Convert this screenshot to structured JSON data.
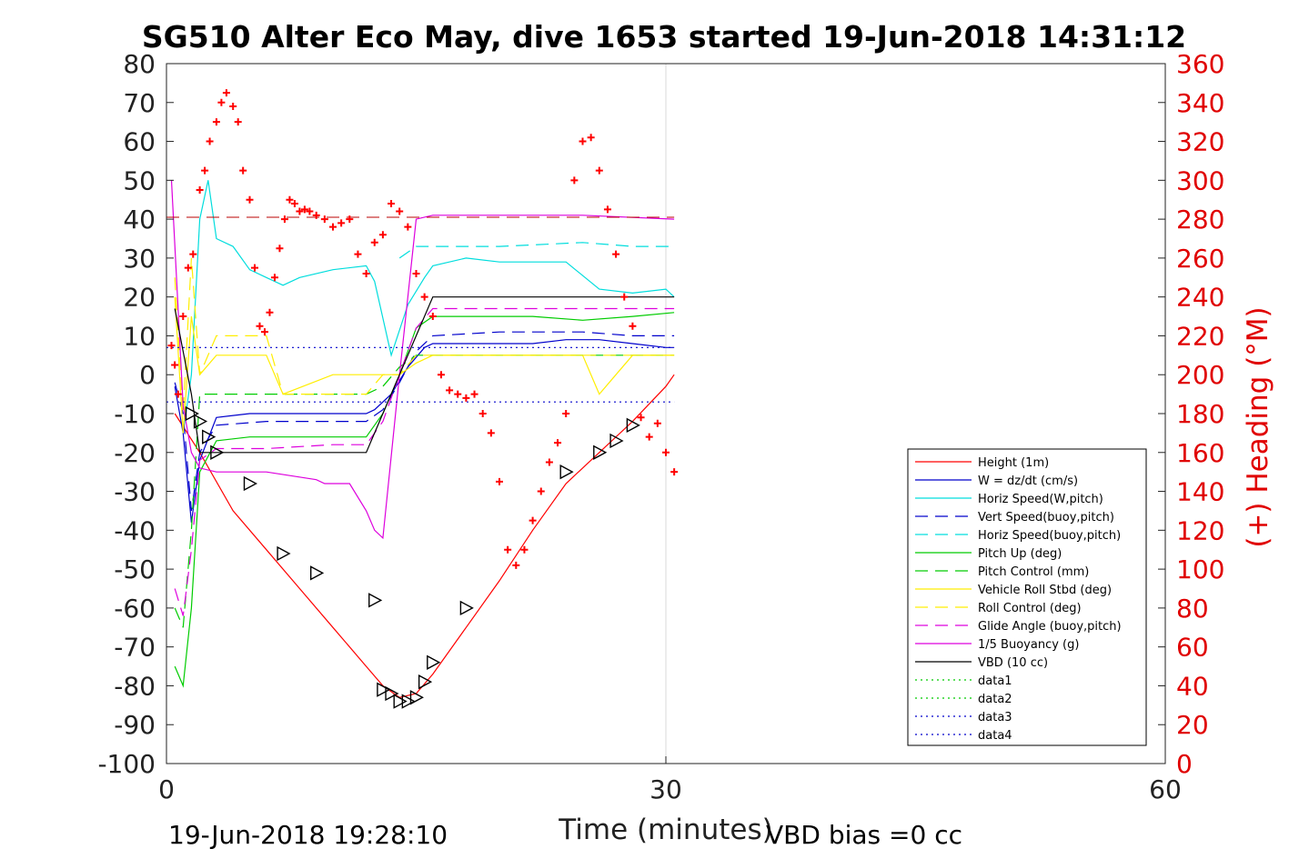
{
  "chart_data": {
    "type": "line",
    "title": "SG510 Alter Eco May, dive 1653 started 19-Jun-2018 14:31:12",
    "xlabel": "Time (minutes)",
    "ylabel": "",
    "y2label": "(+) Heading (°M)",
    "xlim": [
      0,
      60
    ],
    "ylim": [
      -100,
      80
    ],
    "y2lim": [
      0,
      360
    ],
    "xticks": [
      "0",
      "30",
      "60"
    ],
    "yticks": [
      "80",
      "70",
      "60",
      "50",
      "40",
      "30",
      "20",
      "10",
      "0",
      "-10",
      "-20",
      "-30",
      "-40",
      "-50",
      "-60",
      "-70",
      "-80",
      "-90",
      "-100"
    ],
    "y2ticks": [
      "360",
      "340",
      "320",
      "300",
      "280",
      "260",
      "240",
      "220",
      "200",
      "180",
      "160",
      "140",
      "120",
      "100",
      "80",
      "60",
      "40",
      "20",
      "0"
    ],
    "footer_left": "19-Jun-2018 19:28:10",
    "footer_right": "VBD bias =0 cc",
    "grid": "x at 30",
    "legend_position": "lower-right",
    "series": [
      {
        "name": "Height (1m)",
        "color": "#ff0000",
        "style": "solid",
        "x": [
          0.5,
          2,
          4,
          6,
          8,
          10,
          12,
          13,
          14,
          15,
          16,
          18,
          20,
          22,
          24,
          26,
          28,
          30,
          30.5
        ],
        "y": [
          -10,
          -20,
          -35,
          -45,
          -55,
          -65,
          -75,
          -80,
          -83,
          -82,
          -77,
          -65,
          -53,
          -40,
          -28,
          -20,
          -12,
          -3,
          0
        ]
      },
      {
        "name": "W = dz/dt (cm/s)",
        "color": "#0000cc",
        "style": "solid",
        "x": [
          0.5,
          1,
          1.5,
          2,
          3,
          5,
          8,
          10,
          12,
          12.5,
          13.5,
          14.5,
          15.5,
          16,
          18,
          20,
          22,
          24,
          26,
          28,
          30,
          30.5
        ],
        "y": [
          -3,
          -15,
          -38,
          -22,
          -11,
          -10,
          -10,
          -10,
          -10,
          -9,
          -5,
          2,
          7,
          8,
          8,
          8,
          8,
          9,
          9,
          8,
          7,
          7
        ]
      },
      {
        "name": "Horiz Speed(W,pitch)",
        "color": "#00dddd",
        "style": "solid",
        "x": [
          1,
          1.5,
          2,
          2.5,
          3,
          4,
          5,
          6,
          7,
          8,
          10,
          12,
          12.5,
          13.5,
          14.5,
          15.5,
          16,
          18,
          20,
          22,
          24,
          26,
          28,
          30,
          30.5
        ],
        "y": [
          -15,
          0,
          40,
          50,
          35,
          33,
          27,
          25,
          23,
          25,
          27,
          28,
          24,
          5,
          18,
          25,
          28,
          30,
          29,
          29,
          29,
          22,
          21,
          22,
          20
        ]
      },
      {
        "name": "Vert Speed(buoy,pitch)",
        "color": "#0000cc",
        "style": "dashed",
        "x": [
          0.5,
          1,
          1.5,
          2,
          3,
          6,
          10,
          12,
          13,
          14,
          15,
          16,
          20,
          25,
          28,
          30.5
        ],
        "y": [
          -2,
          -10,
          -35,
          -20,
          -13,
          -12,
          -12,
          -12,
          -9,
          -2,
          6,
          10,
          11,
          11,
          10,
          10
        ]
      },
      {
        "name": "Horiz Speed(buoy,pitch)",
        "color": "#00dddd",
        "style": "dashed",
        "x": [
          14,
          15,
          16,
          20,
          25,
          28,
          30.5
        ],
        "y": [
          30,
          33,
          33,
          33,
          34,
          33,
          33
        ]
      },
      {
        "name": "Pitch Up (deg)",
        "color": "#00cc00",
        "style": "solid",
        "x": [
          0.5,
          1,
          1.5,
          2,
          3,
          5,
          8,
          12,
          13,
          14,
          15,
          16,
          18,
          20,
          22,
          25,
          28,
          30.5
        ],
        "y": [
          -75,
          -80,
          -60,
          -25,
          -17,
          -16,
          -16,
          -16,
          -10,
          0,
          12,
          15,
          15,
          15,
          15,
          14,
          15,
          16
        ]
      },
      {
        "name": "Pitch Control (mm)",
        "color": "#00cc00",
        "style": "dashed",
        "x": [
          0.5,
          1,
          1.5,
          2,
          3,
          12,
          13,
          14,
          15,
          30.5
        ],
        "y": [
          -60,
          -65,
          -40,
          -5,
          -5,
          -5,
          -3,
          2,
          5,
          5
        ]
      },
      {
        "name": "Vehicle Roll Stbd (deg)",
        "color": "#ffee00",
        "style": "solid",
        "x": [
          0.5,
          1,
          1.5,
          2,
          3,
          6,
          7,
          10,
          13,
          14,
          15,
          16,
          18,
          20,
          22,
          25,
          26,
          27,
          28,
          30.5
        ],
        "y": [
          20,
          -15,
          15,
          0,
          5,
          5,
          -5,
          0,
          0,
          0,
          3,
          5,
          5,
          5,
          5,
          5,
          -5,
          0,
          5,
          5
        ]
      },
      {
        "name": "Roll Control (deg)",
        "color": "#ffee00",
        "style": "dashed",
        "x": [
          0.5,
          1,
          1.5,
          2,
          3,
          4,
          6,
          7,
          12,
          13,
          14,
          15,
          16,
          28,
          30.5
        ],
        "y": [
          25,
          -10,
          30,
          0,
          10,
          10,
          10,
          -5,
          -5,
          0,
          0,
          5,
          5,
          5,
          5
        ]
      },
      {
        "name": "Glide Angle (buoy,pitch)",
        "color": "#dd00dd",
        "style": "dashed",
        "x": [
          0.5,
          1,
          1.5,
          2,
          3,
          6,
          10,
          12,
          13,
          14,
          15,
          16,
          20,
          25,
          28,
          30.5
        ],
        "y": [
          -55,
          -62,
          -45,
          -22,
          -19,
          -19,
          -18,
          -18,
          -12,
          0,
          12,
          17,
          17,
          17,
          17,
          17
        ]
      },
      {
        "name": "1/5 Buoyancy (g)",
        "color": "#dd00dd",
        "style": "solid",
        "x": [
          0.3,
          1,
          1.5,
          2,
          3,
          6,
          9,
          9.5,
          11,
          12,
          12.5,
          13,
          14,
          15,
          16,
          20,
          25,
          30.5
        ],
        "y": [
          50,
          -8,
          -20,
          -24,
          -25,
          -25,
          -27,
          -28,
          -28,
          -35,
          -40,
          -42,
          0,
          40,
          41,
          41,
          41,
          40
        ]
      },
      {
        "name": "VBD (10 cc)",
        "color": "#000000",
        "style": "solid",
        "x": [
          0.5,
          1.5,
          2,
          3,
          12,
          13,
          14,
          15,
          16,
          30.5
        ],
        "y": [
          17,
          -5,
          -20,
          -20,
          -20,
          -10,
          0,
          10,
          20,
          20
        ]
      },
      {
        "name": "data1",
        "color": "#00cc00",
        "style": "dotted",
        "x": [],
        "y": []
      },
      {
        "name": "data2",
        "color": "#00cc00",
        "style": "dotted",
        "x": [],
        "y": []
      },
      {
        "name": "data3",
        "color": "#0000cc",
        "style": "dotted",
        "x": [
          0,
          30.5
        ],
        "y": [
          7,
          7
        ]
      },
      {
        "name": "data4",
        "color": "#0000cc",
        "style": "dotted",
        "x": [
          0,
          30.5
        ],
        "y": [
          -7,
          -7
        ]
      }
    ],
    "heading_marks": {
      "color": "#ff0000",
      "axis": "right",
      "marker": "+",
      "x": [
        0.3,
        0.5,
        0.7,
        1,
        1.3,
        1.6,
        2,
        2.3,
        2.6,
        3,
        3.3,
        3.6,
        4,
        4.3,
        4.6,
        5,
        5.3,
        5.6,
        5.9,
        6.2,
        6.5,
        6.8,
        7.1,
        7.4,
        7.7,
        8,
        8.3,
        8.6,
        9,
        9.5,
        10,
        10.5,
        11,
        11.5,
        12,
        12.5,
        13,
        13.5,
        14,
        14.5,
        15,
        15.5,
        16,
        16.5,
        17,
        17.5,
        18,
        18.5,
        19,
        19.5,
        20,
        20.5,
        21,
        21.5,
        22,
        22.5,
        23,
        23.5,
        24,
        24.5,
        25,
        25.5,
        26,
        26.5,
        27,
        27.5,
        28,
        28.5,
        29,
        29.5,
        30,
        30.5
      ],
      "y": [
        215,
        205,
        190,
        230,
        255,
        262,
        295,
        305,
        320,
        330,
        340,
        345,
        338,
        330,
        305,
        290,
        255,
        225,
        222,
        232,
        250,
        265,
        280,
        290,
        288,
        284,
        285,
        284,
        282,
        280,
        276,
        278,
        280,
        262,
        252,
        268,
        272,
        288,
        284,
        276,
        252,
        240,
        230,
        200,
        192,
        190,
        188,
        190,
        180,
        170,
        145,
        110,
        102,
        110,
        125,
        140,
        155,
        165,
        180,
        300,
        320,
        322,
        305,
        285,
        262,
        240,
        225,
        178,
        168,
        175,
        160,
        150
      ]
    },
    "triangle_marks": {
      "color": "#000000",
      "axis": "left",
      "x": [
        1.5,
        2,
        2.5,
        3,
        5,
        7,
        9,
        12.5,
        13,
        13.5,
        14,
        14.5,
        15,
        15.5,
        16,
        18,
        24,
        26,
        27,
        28
      ],
      "y": [
        -10,
        -12,
        -16,
        -20,
        -28,
        -46,
        -51,
        -58,
        -81,
        -82,
        -84,
        -84,
        -83,
        -79,
        -74,
        -60,
        -25,
        -20,
        -17,
        -13
      ]
    }
  }
}
